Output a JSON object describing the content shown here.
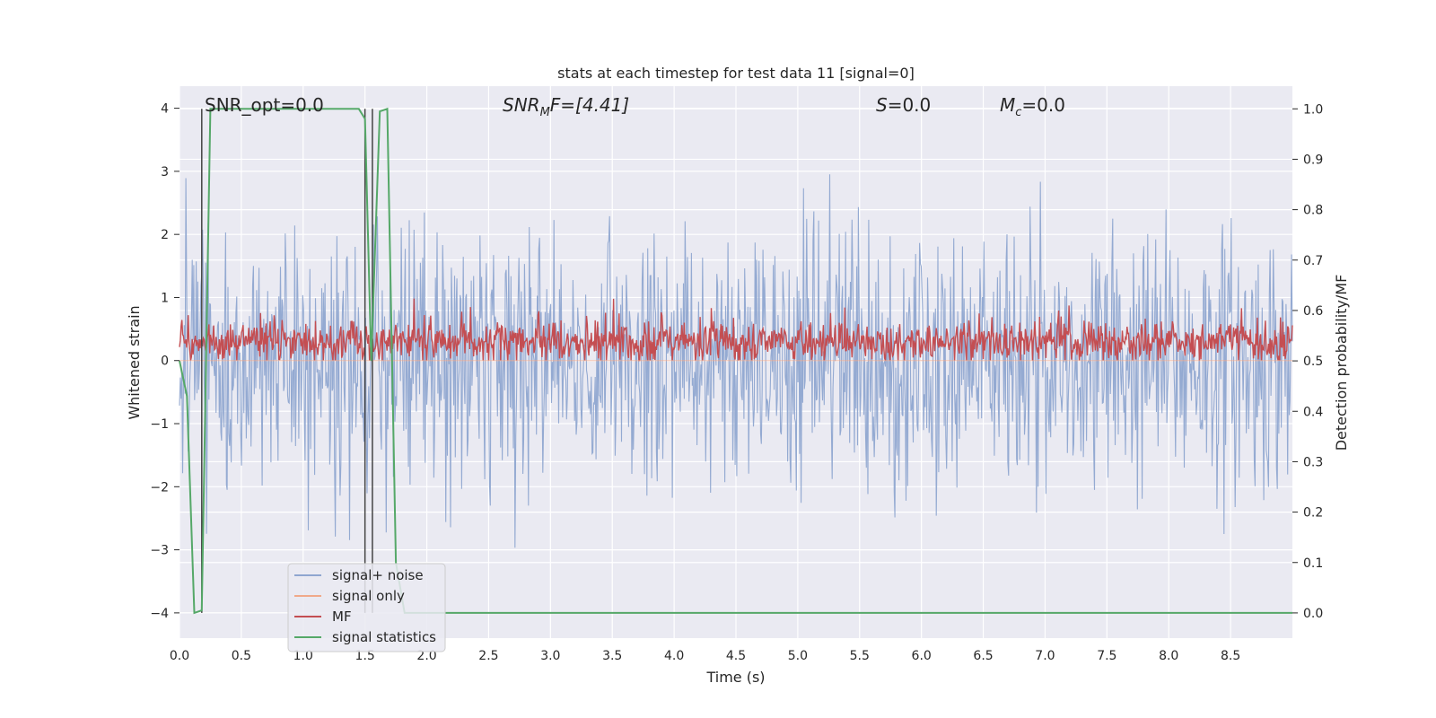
{
  "chart_data": {
    "type": "line",
    "title": "stats at each timestep for test data 11 [signal=0]",
    "xlabel": "Time (s)",
    "ylabel": "Whitened strain",
    "y2label": "Detection probability/MF",
    "xlim": [
      0.0,
      9.0
    ],
    "ylim": [
      -4.4,
      4.35
    ],
    "y2lim": [
      -0.05,
      1.045
    ],
    "x_ticks": [
      0.0,
      0.5,
      1.0,
      1.5,
      2.0,
      2.5,
      3.0,
      3.5,
      4.0,
      4.5,
      5.0,
      5.5,
      6.0,
      6.5,
      7.0,
      7.5,
      8.0,
      8.5
    ],
    "x_tick_labels": [
      "0.0",
      "0.5",
      "1.0",
      "1.5",
      "2.0",
      "2.5",
      "3.0",
      "3.5",
      "4.0",
      "4.5",
      "5.0",
      "5.5",
      "6.0",
      "6.5",
      "7.0",
      "7.5",
      "8.0",
      "8.5"
    ],
    "y_ticks": [
      4,
      3,
      2,
      1,
      0,
      -1,
      -2,
      -3,
      -4
    ],
    "y_tick_labels": [
      "4",
      "3",
      "2",
      "1",
      "0",
      "−1",
      "−2",
      "−3",
      "−4"
    ],
    "y2_ticks": [
      1.0,
      0.9,
      0.8,
      0.7,
      0.6,
      0.5,
      0.4,
      0.3,
      0.2,
      0.1,
      0.0
    ],
    "y2_tick_labels": [
      "1.0",
      "0.9",
      "0.8",
      "0.7",
      "0.6",
      "0.5",
      "0.4",
      "0.3",
      "0.2",
      "0.1",
      "0.0"
    ],
    "grid": true,
    "legend_position": "lower-left",
    "annotations": {
      "snr_opt": "SNR_opt=0.0",
      "snr_mf_main": "SNR",
      "snr_mf_sub": "M",
      "snr_mf_rest": "F=[4.41]",
      "s_main": "S",
      "s_rest": "=0.0",
      "mc_main": "M",
      "mc_sub": "c",
      "mc_rest": "=0.0"
    },
    "series": [
      {
        "name": "signal+ noise",
        "color": "#8fa6d0",
        "axis": "left",
        "description_points": {
          "x_start": 0.0,
          "x_end": 9.0,
          "mean": 0.0,
          "typical_range": [
            -2.6,
            2.6
          ],
          "max": 3.9,
          "min": -4.0
        }
      },
      {
        "name": "signal only",
        "color": "#f0a98a",
        "axis": "left",
        "values_constant": 0.0
      },
      {
        "name": "MF",
        "color": "#c44e52",
        "axis": "left",
        "description_points": {
          "x_start": 0.0,
          "x_end": 9.0,
          "mean": 0.3,
          "typical_range": [
            0.05,
            0.6
          ],
          "max": 1.0,
          "min": 0.0
        }
      },
      {
        "name": "signal statistics",
        "color": "#55a868",
        "axis": "right",
        "x": [
          0.0,
          0.06,
          0.12,
          0.18,
          0.25,
          0.3,
          1.45,
          1.5,
          1.55,
          1.62,
          1.68,
          1.75,
          1.82,
          9.0
        ],
        "y": [
          0.5,
          0.43,
          0.0,
          0.005,
          1.0,
          1.0,
          1.0,
          0.98,
          0.5,
          0.995,
          1.0,
          0.1,
          0.0,
          0.0
        ]
      }
    ],
    "vertical_lines": [
      0.18,
      1.5,
      1.56
    ]
  }
}
